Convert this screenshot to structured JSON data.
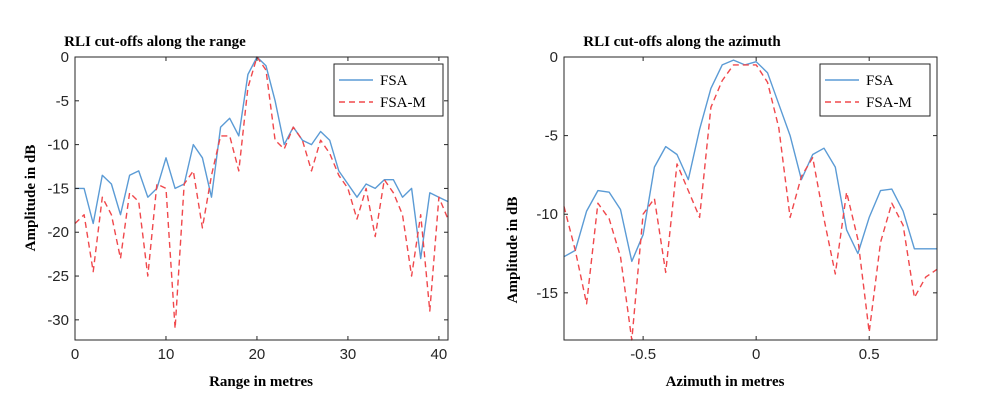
{
  "colors": {
    "fsa": "#5B9BD5",
    "fsa_m": "#F0484C",
    "axis": "#262626"
  },
  "chart_data": [
    {
      "type": "line",
      "title": "RLI cut-offs along the range",
      "xlabel": "Range in metres",
      "ylabel": "Amplitude in dB",
      "xlim": [
        0,
        41
      ],
      "ylim": [
        -32.3,
        0
      ],
      "xticks": [
        0,
        10,
        20,
        30,
        40
      ],
      "yticks": [
        0,
        -5,
        -10,
        -15,
        -20,
        -25,
        -30
      ],
      "grid": false,
      "legend_position": "top-right",
      "series": [
        {
          "name": "FSA",
          "style": "solid",
          "x": [
            0,
            1,
            2,
            3,
            4,
            5,
            6,
            7,
            8,
            9,
            10,
            11,
            12,
            13,
            14,
            15,
            16,
            17,
            18,
            19,
            20,
            21,
            22,
            23,
            24,
            25,
            26,
            27,
            28,
            29,
            30,
            31,
            32,
            33,
            34,
            35,
            36,
            37,
            38,
            39,
            40,
            41
          ],
          "y": [
            -15,
            -15,
            -19,
            -13.5,
            -14.5,
            -18,
            -13.5,
            -13,
            -16,
            -15,
            -11.5,
            -15,
            -14.5,
            -10,
            -11.5,
            -16,
            -8,
            -7,
            -9,
            -2,
            0,
            -1,
            -5,
            -10,
            -8,
            -9.5,
            -10,
            -8.5,
            -9.5,
            -13,
            -14.5,
            -16,
            -14.5,
            -15,
            -14,
            -14,
            -16,
            -15,
            -23,
            -15.5,
            -16,
            -16.5
          ]
        },
        {
          "name": "FSA-M",
          "style": "dashed",
          "x": [
            0,
            1,
            2,
            3,
            4,
            5,
            6,
            7,
            8,
            9,
            10,
            11,
            12,
            13,
            14,
            15,
            16,
            17,
            18,
            19,
            20,
            21,
            22,
            23,
            24,
            25,
            26,
            27,
            28,
            29,
            30,
            31,
            32,
            33,
            34,
            35,
            36,
            37,
            38,
            39,
            40,
            41
          ],
          "y": [
            -19,
            -18,
            -24.5,
            -16,
            -18,
            -23,
            -15.5,
            -16.5,
            -25,
            -14.5,
            -15,
            -31,
            -14.5,
            -13,
            -19.5,
            -13.5,
            -9,
            -9,
            -13,
            -3.5,
            0,
            -1.5,
            -9.5,
            -10.5,
            -8,
            -9.5,
            -13,
            -9.5,
            -11,
            -13.5,
            -15,
            -18.5,
            -15,
            -20.5,
            -14,
            -15.5,
            -18,
            -25,
            -18,
            -29,
            -16,
            -18.5
          ]
        }
      ]
    },
    {
      "type": "line",
      "title": "RLI cut-offs along the azimuth",
      "xlabel": "Azimuth in metres",
      "ylabel": "Amplitude in dB",
      "xlim": [
        -0.85,
        0.8
      ],
      "ylim": [
        -18,
        0
      ],
      "xticks": [
        -0.5,
        0,
        0.5
      ],
      "yticks": [
        0,
        -5,
        -10,
        -15
      ],
      "grid": false,
      "legend_position": "top-right",
      "series": [
        {
          "name": "FSA",
          "style": "solid",
          "x": [
            -0.85,
            -0.8,
            -0.75,
            -0.7,
            -0.65,
            -0.6,
            -0.55,
            -0.5,
            -0.45,
            -0.4,
            -0.35,
            -0.3,
            -0.25,
            -0.2,
            -0.15,
            -0.1,
            -0.05,
            0,
            0.05,
            0.1,
            0.15,
            0.2,
            0.25,
            0.3,
            0.35,
            0.4,
            0.45,
            0.5,
            0.55,
            0.6,
            0.65,
            0.7,
            0.75,
            0.8
          ],
          "y": [
            -12.7,
            -12.3,
            -9.8,
            -8.5,
            -8.6,
            -9.7,
            -13,
            -11.3,
            -7,
            -5.7,
            -6.2,
            -7.8,
            -4.6,
            -2,
            -0.5,
            -0.2,
            -0.5,
            -0.3,
            -1,
            -3,
            -5,
            -7.8,
            -6.2,
            -5.8,
            -7,
            -11,
            -12.5,
            -10.2,
            -8.5,
            -8.4,
            -9.8,
            -12.2,
            -12.2,
            -12.2
          ]
        },
        {
          "name": "FSA-M",
          "style": "dashed",
          "x": [
            -0.85,
            -0.8,
            -0.75,
            -0.7,
            -0.65,
            -0.6,
            -0.55,
            -0.5,
            -0.45,
            -0.4,
            -0.35,
            -0.3,
            -0.25,
            -0.2,
            -0.15,
            -0.1,
            -0.05,
            0,
            0.05,
            0.1,
            0.15,
            0.2,
            0.25,
            0.3,
            0.35,
            0.4,
            0.45,
            0.5,
            0.55,
            0.6,
            0.65,
            0.7,
            0.75,
            0.8
          ],
          "y": [
            -9.5,
            -12.3,
            -15.7,
            -9.3,
            -10.3,
            -12.7,
            -18,
            -10,
            -9,
            -13.7,
            -6.8,
            -8.5,
            -10.2,
            -3.2,
            -1.5,
            -0.5,
            -0.5,
            -0.5,
            -1.6,
            -4.5,
            -10.2,
            -7.6,
            -6.4,
            -10.3,
            -13.8,
            -8.6,
            -11.6,
            -17.5,
            -11.8,
            -9.3,
            -10.7,
            -15.3,
            -14,
            -13.5
          ]
        }
      ]
    }
  ]
}
